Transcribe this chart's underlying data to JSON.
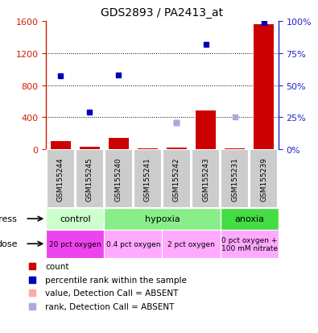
{
  "title": "GDS2893 / PA2413_at",
  "samples": [
    "GSM155244",
    "GSM155245",
    "GSM155240",
    "GSM155241",
    "GSM155242",
    "GSM155243",
    "GSM155231",
    "GSM155239"
  ],
  "count_values": [
    100,
    30,
    145,
    10,
    25,
    480,
    15,
    1560
  ],
  "count_absent": [
    false,
    false,
    false,
    false,
    false,
    false,
    false,
    false
  ],
  "rank_values": [
    57,
    29,
    58,
    null,
    21,
    82,
    null,
    99
  ],
  "rank_absent": [
    false,
    false,
    false,
    false,
    false,
    false,
    false,
    false
  ],
  "rank_absent_vals": [
    null,
    null,
    null,
    null,
    21,
    null,
    25,
    null
  ],
  "ylim_left": [
    0,
    1600
  ],
  "ylim_right": [
    0,
    100
  ],
  "yticks_left": [
    0,
    400,
    800,
    1200,
    1600
  ],
  "yticks_right": [
    0,
    25,
    50,
    75,
    100
  ],
  "ytick_labels_left": [
    "0",
    "400",
    "800",
    "1200",
    "1600"
  ],
  "ytick_labels_right": [
    "0%",
    "25%",
    "50%",
    "75%",
    "100%"
  ],
  "stress_groups": [
    {
      "label": "control",
      "start": 0,
      "end": 2,
      "color": "#ccffcc"
    },
    {
      "label": "hypoxia",
      "start": 2,
      "end": 6,
      "color": "#88ee88"
    },
    {
      "label": "anoxia",
      "start": 6,
      "end": 8,
      "color": "#44dd44"
    }
  ],
  "dose_groups": [
    {
      "label": "20 pct oxygen",
      "start": 0,
      "end": 2,
      "color": "#ee44ee"
    },
    {
      "label": "0.4 pct oxygen",
      "start": 2,
      "end": 4,
      "color": "#ffaaff"
    },
    {
      "label": "2 pct oxygen",
      "start": 4,
      "end": 6,
      "color": "#ffaaff"
    },
    {
      "label": "0 pct oxygen +\n100 mM nitrate",
      "start": 6,
      "end": 8,
      "color": "#ffaaff"
    }
  ],
  "bar_color_present": "#cc0000",
  "bar_color_absent": "#ffaaaa",
  "dot_color_present": "#0000bb",
  "dot_color_absent": "#aaaadd",
  "sample_bg_color": "#cccccc",
  "sample_border_color": "#ffffff",
  "left_axis_color": "#cc2200",
  "right_axis_color": "#2222cc",
  "background_color": "#ffffff",
  "legend_items": [
    {
      "color": "#cc0000",
      "label": "count"
    },
    {
      "color": "#0000bb",
      "label": "percentile rank within the sample"
    },
    {
      "color": "#ffaaaa",
      "label": "value, Detection Call = ABSENT"
    },
    {
      "color": "#aaaadd",
      "label": "rank, Detection Call = ABSENT"
    }
  ]
}
